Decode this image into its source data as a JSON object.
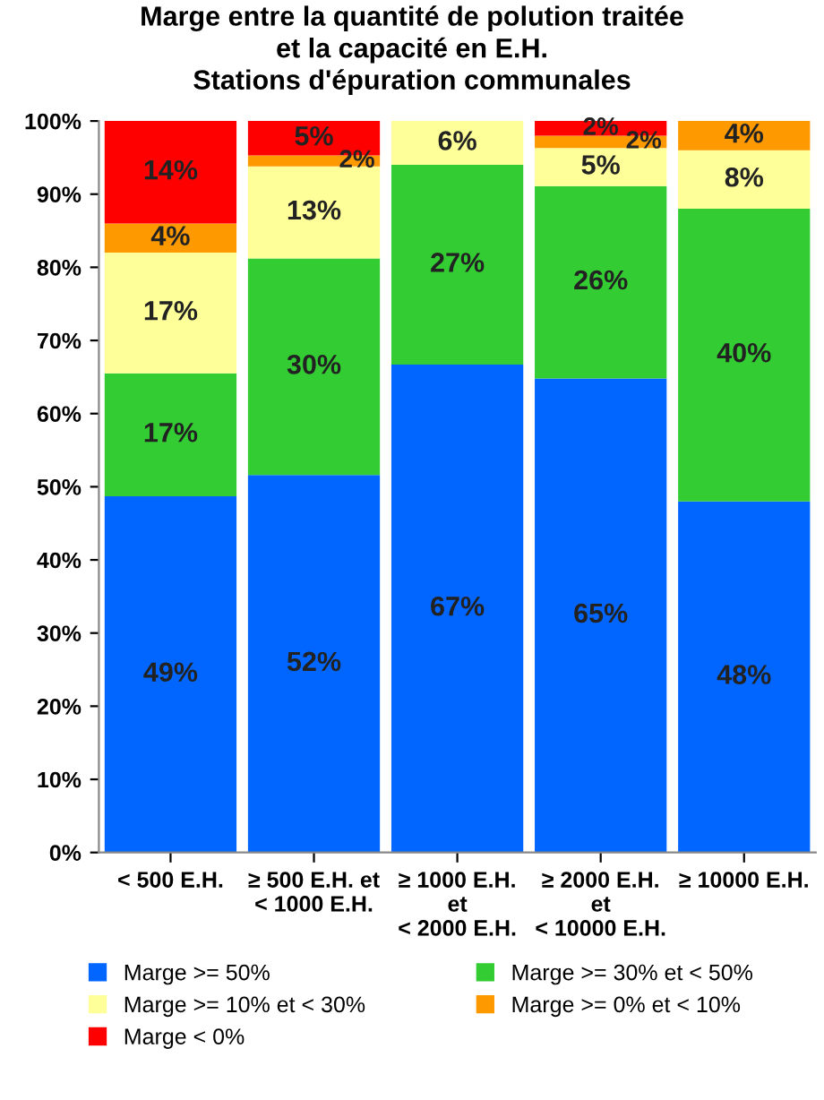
{
  "chart_data": {
    "type": "bar",
    "stacked": true,
    "title": "Marge entre la quantité de polution traitée\net la capacité en E.H.\nStations d'épuration communales",
    "categories": [
      "< 500 E.H.",
      "≥ 500 E.H. et\n< 1000 E.H.",
      "≥ 1000 E.H.\net\n< 2000 E.H.",
      "≥ 2000 E.H.\net\n< 10000 E.H.",
      "≥ 10000 E.H."
    ],
    "series": [
      {
        "name": "Marge >= 50%",
        "color": "#0066ff",
        "values": [
          48.7,
          51.6,
          66.7,
          64.8,
          48
        ],
        "value_labels": [
          "49%",
          "52%",
          "67%",
          "65%",
          "48%"
        ]
      },
      {
        "name": "Marge >= 30% et < 50%",
        "color": "#33cc33",
        "values": [
          16.8,
          29.6,
          27.3,
          26.3,
          40
        ],
        "value_labels": [
          "17%",
          "30%",
          "27%",
          "26%",
          "40%"
        ]
      },
      {
        "name": "Marge >= 10% et < 30%",
        "color": "#ffff99",
        "values": [
          16.5,
          12.6,
          6,
          5.2,
          8
        ],
        "value_labels": [
          "17%",
          "13%",
          "6%",
          "5%",
          "8%"
        ]
      },
      {
        "name": "Marge >= 0% et < 10%",
        "color": "#ff9900",
        "values": [
          4,
          1.5,
          0,
          1.7,
          4
        ],
        "value_labels": [
          "4%",
          "2%",
          null,
          "2%",
          "4%"
        ]
      },
      {
        "name": "Marge < 0%",
        "color": "#ff0000",
        "values": [
          14,
          4.7,
          0,
          2,
          0
        ],
        "value_labels": [
          "14%",
          "5%",
          null,
          "2%",
          null
        ]
      }
    ],
    "ylim": [
      0,
      100
    ],
    "yticks": [
      {
        "value": 0,
        "label": "0%"
      },
      {
        "value": 10,
        "label": "10%"
      },
      {
        "value": 20,
        "label": "20%"
      },
      {
        "value": 30,
        "label": "30%"
      },
      {
        "value": 40,
        "label": "40%"
      },
      {
        "value": 50,
        "label": "50%"
      },
      {
        "value": 60,
        "label": "60%"
      },
      {
        "value": 70,
        "label": "70%"
      },
      {
        "value": 80,
        "label": "80%"
      },
      {
        "value": 90,
        "label": "90%"
      },
      {
        "value": 100,
        "label": "100%"
      }
    ],
    "legend": "bottom"
  }
}
